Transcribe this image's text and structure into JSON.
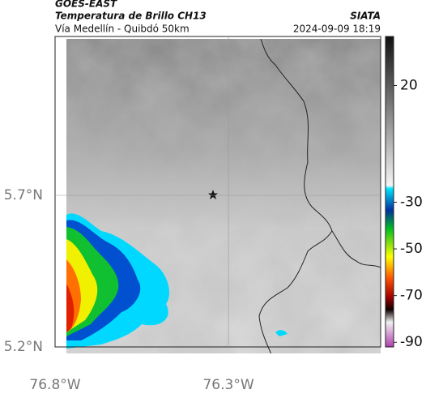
{
  "header": {
    "source": "GOES-EAST",
    "title": "Temperatura de Brillo CH13",
    "org": "SIATA",
    "subtitle": "Vía Medellín - Quibdó 50km",
    "datetime": "2024-09-09 18:19"
  },
  "map": {
    "xlim": [
      -76.8,
      -75.861
    ],
    "ylim": [
      5.2,
      6.224
    ],
    "xticks": [
      {
        "value": -76.8,
        "label": "76.8°W"
      },
      {
        "value": -76.3,
        "label": "76.3°W"
      }
    ],
    "yticks": [
      {
        "value": 5.2,
        "label": "5.2°N"
      },
      {
        "value": 5.7,
        "label": "5.7°N"
      }
    ]
  },
  "colorbar": {
    "lim": [
      -92,
      41
    ],
    "ticks": [
      20,
      -30,
      -50,
      -70,
      -90
    ]
  }
}
